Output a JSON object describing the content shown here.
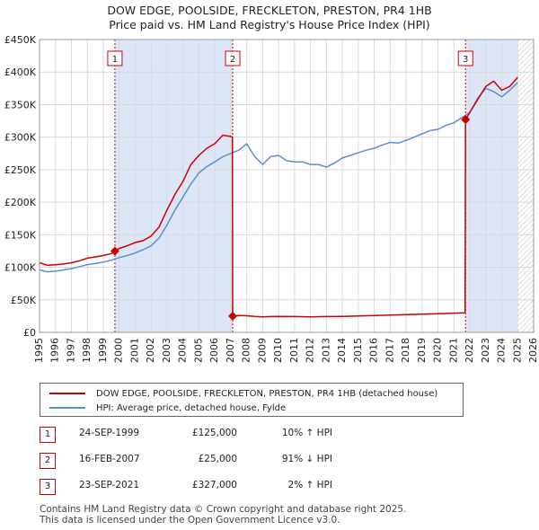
{
  "title": {
    "line1": "DOW EDGE, POOLSIDE, FRECKLETON, PRESTON, PR4 1HB",
    "line2": "Price paid vs. HM Land Registry's House Price Index (HPI)"
  },
  "legend": {
    "property_label": "DOW EDGE, POOLSIDE, FRECKLETON, PRESTON, PR4 1HB (detached house)",
    "hpi_label": "HPI: Average price, detached house, Fylde"
  },
  "sales": [
    {
      "num": "1",
      "date": "24-SEP-1999",
      "price": "£125,000",
      "hpi": "10% ↑ HPI"
    },
    {
      "num": "2",
      "date": "16-FEB-2007",
      "price": "£25,000",
      "hpi": "91% ↓ HPI"
    },
    {
      "num": "3",
      "date": "23-SEP-2021",
      "price": "£327,000",
      "hpi": "2% ↑ HPI"
    }
  ],
  "footer": {
    "line1": "Contains HM Land Registry data © Crown copyright and database right 2025.",
    "line2": "This data is licensed under the Open Government Licence v3.0."
  },
  "colors": {
    "property": "#cc0000",
    "hpi": "#5b8fd0",
    "shade": "#dde6f7",
    "grid": "#d9d9d9",
    "marker_border": "#cc0000"
  },
  "chart_data": {
    "type": "line",
    "title": "Price paid vs. HM Land Registry's House Price Index (HPI)",
    "xlabel": "",
    "ylabel": "",
    "xlim": [
      1995,
      2026
    ],
    "ylim": [
      0,
      450000
    ],
    "x_ticks": [
      1995,
      1996,
      1997,
      1998,
      1999,
      2000,
      2001,
      2002,
      2003,
      2004,
      2005,
      2006,
      2007,
      2008,
      2009,
      2010,
      2011,
      2012,
      2013,
      2014,
      2015,
      2016,
      2017,
      2018,
      2019,
      2020,
      2021,
      2022,
      2023,
      2024,
      2025,
      2026
    ],
    "y_ticks": [
      0,
      50000,
      100000,
      150000,
      200000,
      250000,
      300000,
      350000,
      400000,
      450000
    ],
    "y_tick_labels": [
      "£0",
      "£50K",
      "£100K",
      "£150K",
      "£200K",
      "£250K",
      "£300K",
      "£350K",
      "£400K",
      "£450K"
    ],
    "shaded_periods": [
      [
        1999.73,
        2007.12
      ],
      [
        2021.73,
        2025.0
      ]
    ],
    "future_hatch_from": 2025.0,
    "sale_markers": [
      {
        "label": "1",
        "x": 1999.73,
        "y": 125000
      },
      {
        "label": "2",
        "x": 2007.12,
        "y": 25000
      },
      {
        "label": "3",
        "x": 2021.73,
        "y": 327000
      }
    ],
    "series": [
      {
        "name": "DOW EDGE, POOLSIDE, FRECKLETON, PRESTON, PR4 1HB (detached house)",
        "x": [
          1995.0,
          1995.5,
          1996.0,
          1996.5,
          1997.0,
          1997.5,
          1998.0,
          1998.5,
          1999.0,
          1999.5,
          1999.73,
          2000.0,
          2000.5,
          2001.0,
          2001.5,
          2002.0,
          2002.5,
          2003.0,
          2003.5,
          2004.0,
          2004.5,
          2005.0,
          2005.5,
          2006.0,
          2006.5,
          2007.0,
          2007.1,
          2007.12,
          2007.5,
          2008.0,
          2008.5,
          2009.0,
          2009.5,
          2010.0,
          2011.0,
          2012.0,
          2013.0,
          2014.0,
          2015.0,
          2016.0,
          2017.0,
          2018.0,
          2019.0,
          2020.0,
          2021.0,
          2021.7,
          2021.73,
          2022.0,
          2022.5,
          2023.0,
          2023.5,
          2024.0,
          2024.5,
          2025.0
        ],
        "y": [
          107000,
          103000,
          104000,
          105000,
          107000,
          110000,
          114000,
          116000,
          118000,
          121000,
          125000,
          129000,
          133000,
          138000,
          141000,
          148000,
          162000,
          188000,
          212000,
          232000,
          258000,
          272000,
          283000,
          290000,
          303000,
          301000,
          300000,
          25000,
          26000,
          25500,
          24500,
          23800,
          24300,
          24600,
          24300,
          23800,
          24300,
          24600,
          25300,
          26000,
          26700,
          27400,
          28000,
          28700,
          29500,
          30000,
          327000,
          338000,
          358000,
          378000,
          386000,
          372000,
          378000,
          392000
        ]
      },
      {
        "name": "HPI: Average price, detached house, Fylde",
        "x": [
          1995.0,
          1995.5,
          1996.0,
          1996.5,
          1997.0,
          1997.5,
          1998.0,
          1998.5,
          1999.0,
          1999.5,
          2000.0,
          2000.5,
          2001.0,
          2001.5,
          2002.0,
          2002.5,
          2003.0,
          2003.5,
          2004.0,
          2004.5,
          2005.0,
          2005.5,
          2006.0,
          2006.5,
          2007.0,
          2007.5,
          2008.0,
          2008.5,
          2009.0,
          2009.5,
          2010.0,
          2010.5,
          2011.0,
          2011.5,
          2012.0,
          2012.5,
          2013.0,
          2013.5,
          2014.0,
          2014.5,
          2015.0,
          2015.5,
          2016.0,
          2016.5,
          2017.0,
          2017.5,
          2018.0,
          2018.5,
          2019.0,
          2019.5,
          2020.0,
          2020.5,
          2021.0,
          2021.5,
          2022.0,
          2022.5,
          2023.0,
          2023.5,
          2024.0,
          2024.5,
          2025.0
        ],
        "y": [
          96000,
          93000,
          94000,
          96000,
          98000,
          101000,
          104000,
          106000,
          108000,
          111000,
          115000,
          118000,
          122000,
          127000,
          133000,
          145000,
          165000,
          188000,
          208000,
          228000,
          245000,
          255000,
          262000,
          270000,
          275000,
          280000,
          290000,
          270000,
          258000,
          270000,
          272000,
          264000,
          262000,
          262000,
          258000,
          258000,
          254000,
          260000,
          268000,
          272000,
          276000,
          280000,
          283000,
          288000,
          292000,
          291000,
          295000,
          300000,
          305000,
          310000,
          312000,
          318000,
          322000,
          330000,
          338000,
          360000,
          375000,
          370000,
          362000,
          372000,
          384000
        ]
      }
    ]
  }
}
